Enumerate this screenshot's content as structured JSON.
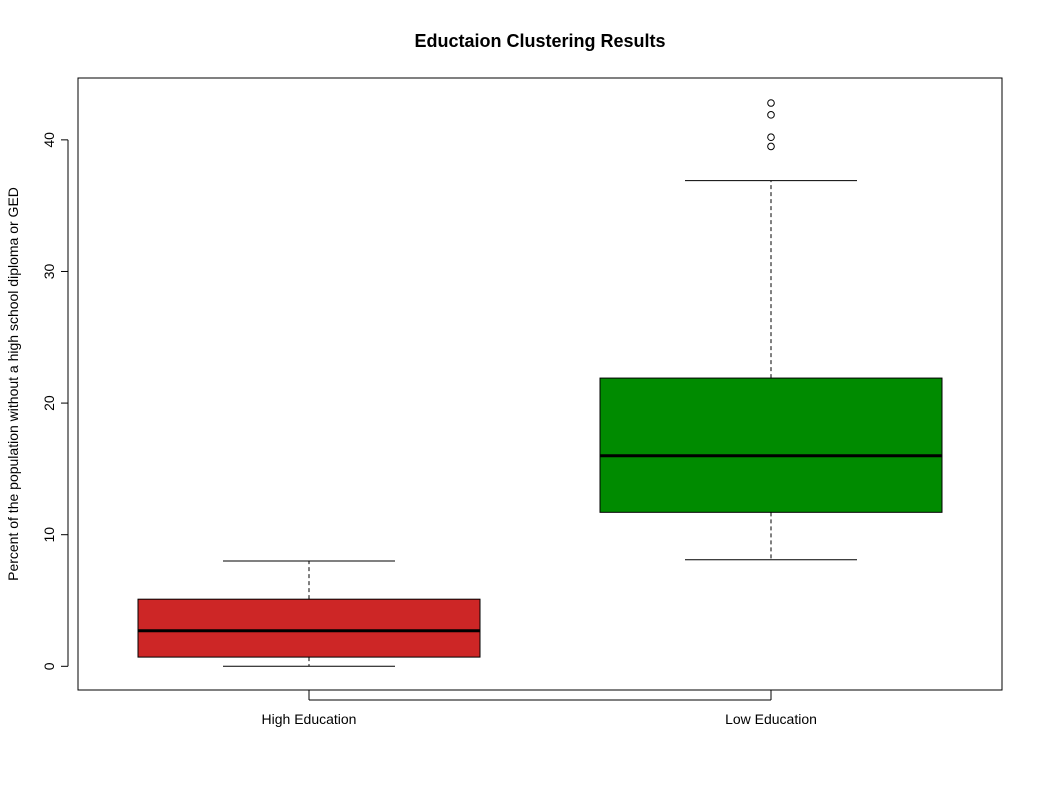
{
  "chart_data": {
    "type": "boxplot",
    "title": "Eductaion Clustering Results",
    "xlabel": "",
    "ylabel": "Percent of the population without a high school diploma or GED",
    "ylim": [
      -1.8,
      44.7
    ],
    "yticks": [
      0,
      10,
      20,
      30,
      40
    ],
    "grid": false,
    "legend": "none",
    "boxes": [
      {
        "name": "High Education",
        "color": "#cd2626",
        "whisker_low": 0.0,
        "q1": 0.7,
        "median": 2.7,
        "q3": 5.1,
        "whisker_high": 8.0,
        "outliers": []
      },
      {
        "name": "Low Education",
        "color": "#008b00",
        "whisker_low": 8.1,
        "q1": 11.7,
        "median": 16.0,
        "q3": 21.9,
        "whisker_high": 36.9,
        "outliers": [
          39.5,
          40.2,
          41.9,
          42.8
        ]
      }
    ]
  }
}
